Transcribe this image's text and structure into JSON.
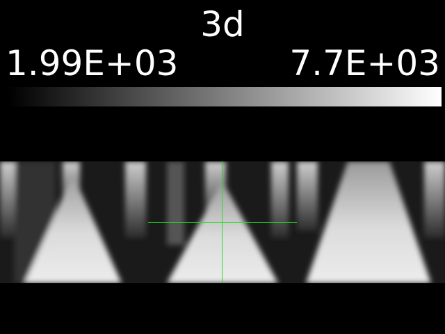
{
  "title": "3d",
  "colorbar": {
    "min_label": "1.99E+03",
    "max_label": "7.7E+03"
  }
}
